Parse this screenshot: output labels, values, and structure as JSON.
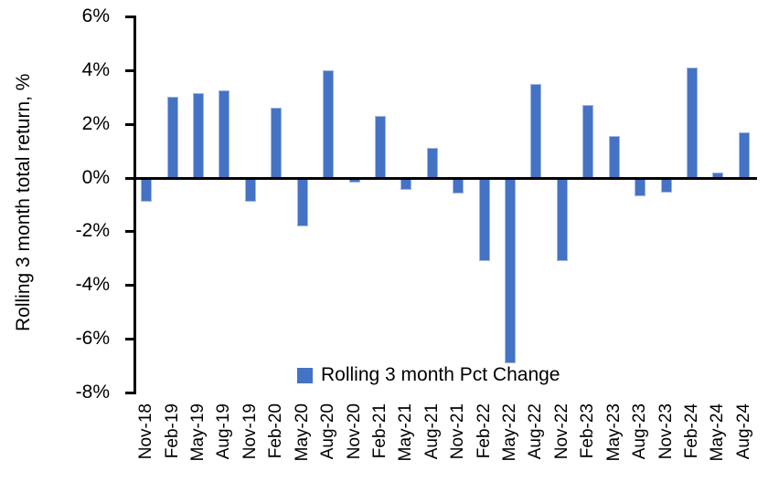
{
  "window": {
    "background": "#FFFFFF"
  },
  "chart_data": {
    "type": "bar",
    "title": "",
    "xlabel": "",
    "ylabel": "Rolling 3 month total return, %",
    "series_name": "Rolling 3 month Pct Change",
    "categories": [
      "Nov-18",
      "Feb-19",
      "May-19",
      "Aug-19",
      "Nov-19",
      "Feb-20",
      "May-20",
      "Aug-20",
      "Nov-20",
      "Feb-21",
      "May-21",
      "Aug-21",
      "Nov-21",
      "Feb-22",
      "May-22",
      "Aug-22",
      "Nov-22",
      "Feb-23",
      "May-23",
      "Aug-23",
      "Nov-23",
      "Feb-24",
      "May-24",
      "Aug-24"
    ],
    "values": [
      -0.9,
      3.0,
      3.15,
      3.25,
      -0.9,
      2.6,
      -1.8,
      4.0,
      -0.2,
      2.3,
      -0.45,
      1.1,
      -0.6,
      -3.1,
      -6.9,
      3.5,
      -3.1,
      2.7,
      1.55,
      -0.7,
      -0.55,
      4.1,
      0.2,
      1.7
    ],
    "ylim": [
      -8,
      6
    ],
    "ytick_step": 2,
    "ytick_labels": [
      "6%",
      "4%",
      "2%",
      "0%",
      "-2%",
      "-4%",
      "-6%",
      "-8%"
    ],
    "grid": false,
    "legend_position": "bottom-center",
    "bar_color": "#4472C4",
    "bar_edge_color": "#9FB6E2",
    "axis_color": "#000000",
    "text_color": "#000000"
  }
}
